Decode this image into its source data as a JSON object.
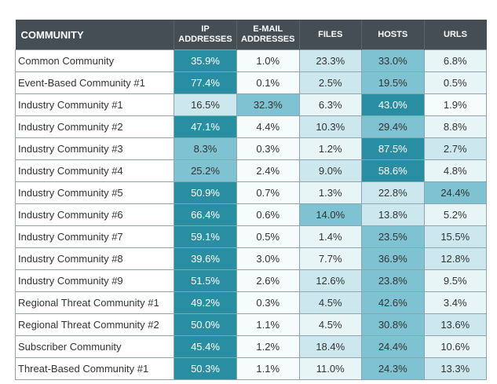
{
  "chart_data": {
    "type": "table",
    "columns": [
      {
        "key": "community",
        "label": "COMMUNITY"
      },
      {
        "key": "ip",
        "label_lines": [
          "IP",
          "ADDRESSES"
        ]
      },
      {
        "key": "email",
        "label_lines": [
          "E-MAIL",
          "ADDRESSES"
        ]
      },
      {
        "key": "files",
        "label_lines": [
          "FILES"
        ]
      },
      {
        "key": "hosts",
        "label_lines": [
          "HOSTS"
        ]
      },
      {
        "key": "urls",
        "label_lines": [
          "URLS"
        ]
      }
    ],
    "rows": [
      {
        "name": "Common Community",
        "values": [
          "35.9%",
          "1.0%",
          "23.3%",
          "33.0%",
          "6.8%"
        ]
      },
      {
        "name": "Event-Based Community #1",
        "values": [
          "77.4%",
          "0.1%",
          "2.5%",
          "19.5%",
          "0.5%"
        ]
      },
      {
        "name": "Industry Community #1",
        "values": [
          "16.5%",
          "32.3%",
          "6.3%",
          "43.0%",
          "1.9%"
        ]
      },
      {
        "name": "Industry Community #2",
        "values": [
          "47.1%",
          "4.4%",
          "10.3%",
          "29.4%",
          "8.8%"
        ]
      },
      {
        "name": "Industry Community #3",
        "values": [
          "8.3%",
          "0.3%",
          "1.2%",
          "87.5%",
          "2.7%"
        ]
      },
      {
        "name": "Industry Community #4",
        "values": [
          "25.2%",
          "2.4%",
          "9.0%",
          "58.6%",
          "4.8%"
        ]
      },
      {
        "name": "Industry Community #5",
        "values": [
          "50.9%",
          "0.7%",
          "1.3%",
          "22.8%",
          "24.4%"
        ]
      },
      {
        "name": "Industry Community #6",
        "values": [
          "66.4%",
          "0.6%",
          "14.0%",
          "13.8%",
          "5.2%"
        ]
      },
      {
        "name": "Industry Community #7",
        "values": [
          "59.1%",
          "0.5%",
          "1.4%",
          "23.5%",
          "15.5%"
        ]
      },
      {
        "name": "Industry Community #8",
        "values": [
          "39.6%",
          "3.0%",
          "7.7%",
          "36.9%",
          "12.8%"
        ]
      },
      {
        "name": "Industry Community #9",
        "values": [
          "51.5%",
          "2.6%",
          "12.6%",
          "23.8%",
          "9.5%"
        ]
      },
      {
        "name": "Regional Threat Community #1",
        "values": [
          "49.2%",
          "0.3%",
          "4.5%",
          "42.6%",
          "3.4%"
        ]
      },
      {
        "name": "Regional Threat Community #2",
        "values": [
          "50.0%",
          "1.1%",
          "4.5%",
          "30.8%",
          "13.6%"
        ]
      },
      {
        "name": "Subscriber Community",
        "values": [
          "45.4%",
          "1.2%",
          "18.4%",
          "24.4%",
          "10.6%"
        ]
      },
      {
        "name": "Threat-Based Community #1",
        "values": [
          "50.3%",
          "1.1%",
          "11.0%",
          "24.3%",
          "13.3%"
        ]
      }
    ],
    "colors": {
      "header_bg": "#464e55",
      "header_text": "#ffffff",
      "cell_border": "#8fa3ad",
      "text_dark": "#333333",
      "text_light": "#ffffff",
      "scale_high": "#2a8ea3",
      "scale_mid": "#8ecbd9",
      "scale_low": "#ffffff"
    }
  }
}
